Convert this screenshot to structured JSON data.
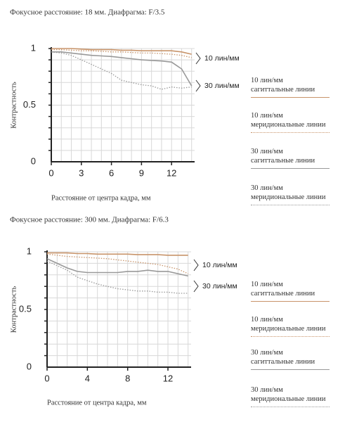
{
  "chart_data": [
    {
      "type": "line",
      "title": "Фокусное расстояние: 18 мм. Диафрагма: F/3.5",
      "xlabel": "Расстояние от центра кадра, мм",
      "ylabel": "Контрастность",
      "annotations": [
        "10 лин/мм",
        "30 лин/мм"
      ],
      "x": [
        0,
        1,
        2,
        3,
        4,
        5,
        6,
        7,
        8,
        9,
        10,
        11,
        12,
        13,
        14
      ],
      "xlim": [
        0,
        14.3
      ],
      "ylim": [
        0,
        1
      ],
      "xticks": [
        0,
        3,
        6,
        9,
        12
      ],
      "yticks": [
        0,
        {
          "value": 0.5,
          "label": "0.5"
        },
        1
      ],
      "minor_xticks": [
        1,
        2,
        3,
        4,
        5,
        6,
        7,
        8,
        9,
        10,
        11,
        12,
        13,
        14
      ],
      "minor_yticks": [
        0.1,
        0.2,
        0.3,
        0.4,
        0.5,
        0.6,
        0.7,
        0.8,
        0.9,
        1
      ],
      "grid": true,
      "series": [
        {
          "name": "10 лин/мм\nсагиттальные линии",
          "color": "#c8946a",
          "style": "solid",
          "values": [
            1,
            1,
            1,
            0.995,
            0.99,
            0.99,
            0.99,
            0.985,
            0.985,
            0.98,
            0.98,
            0.98,
            0.98,
            0.97,
            0.95
          ]
        },
        {
          "name": "10 лин/мм\nмеридиональные линии",
          "color": "#c8946a",
          "style": "dotted",
          "values": [
            0.99,
            0.99,
            0.985,
            0.98,
            0.98,
            0.975,
            0.97,
            0.97,
            0.965,
            0.96,
            0.96,
            0.955,
            0.95,
            0.94,
            0.92
          ]
        },
        {
          "name": "30 лин/мм\nсагиттальные линии",
          "color": "#999999",
          "style": "solid",
          "values": [
            0.97,
            0.97,
            0.96,
            0.95,
            0.94,
            0.935,
            0.93,
            0.92,
            0.91,
            0.9,
            0.895,
            0.89,
            0.88,
            0.82,
            0.67
          ]
        },
        {
          "name": "30 лин/мм\nмеридиональные линии",
          "color": "#999999",
          "style": "dotted",
          "values": [
            0.97,
            0.96,
            0.94,
            0.9,
            0.86,
            0.82,
            0.78,
            0.72,
            0.7,
            0.68,
            0.67,
            0.64,
            0.66,
            0.65,
            0.66
          ]
        }
      ]
    },
    {
      "type": "line",
      "title": "Фокусное расстояние: 300 мм. Диафрагма: F/6.3",
      "xlabel": "Расстояние от центра кадра, мм",
      "ylabel": "Контрастность",
      "annotations": [
        "10 лин/мм",
        "30 лин/мм"
      ],
      "x": [
        0,
        1,
        2,
        3,
        4,
        5,
        6,
        7,
        8,
        9,
        10,
        11,
        12,
        13,
        14
      ],
      "xlim": [
        0,
        14.3
      ],
      "ylim": [
        0,
        1
      ],
      "xticks": [
        0,
        4,
        8,
        12
      ],
      "yticks": [
        0,
        {
          "value": 0.5,
          "label": "0.5"
        },
        1
      ],
      "minor_xticks": [
        1,
        2,
        3,
        4,
        5,
        6,
        7,
        8,
        9,
        10,
        11,
        12,
        13,
        14
      ],
      "minor_yticks": [
        0.1,
        0.2,
        0.3,
        0.4,
        0.5,
        0.6,
        0.7,
        0.8,
        0.9,
        1
      ],
      "grid": true,
      "series": [
        {
          "name": "10 лин/мм\nсагиттальные линии",
          "color": "#c8946a",
          "style": "solid",
          "values": [
            0.99,
            0.99,
            0.99,
            0.985,
            0.985,
            0.98,
            0.98,
            0.98,
            0.98,
            0.975,
            0.975,
            0.975,
            0.97,
            0.97,
            0.97
          ]
        },
        {
          "name": "10 лин/мм\nмеридиональные линии",
          "color": "#c8946a",
          "style": "dotted",
          "values": [
            0.98,
            0.97,
            0.96,
            0.955,
            0.95,
            0.945,
            0.94,
            0.93,
            0.92,
            0.91,
            0.9,
            0.89,
            0.87,
            0.85,
            0.81
          ]
        },
        {
          "name": "30 лин/мм\nсагиттальные линии",
          "color": "#999999",
          "style": "solid",
          "values": [
            0.94,
            0.9,
            0.86,
            0.83,
            0.82,
            0.82,
            0.82,
            0.82,
            0.83,
            0.83,
            0.84,
            0.83,
            0.83,
            0.81,
            0.79
          ]
        },
        {
          "name": "30 лин/мм\nмеридиональные линии",
          "color": "#999999",
          "style": "dotted",
          "values": [
            0.92,
            0.88,
            0.84,
            0.78,
            0.75,
            0.72,
            0.7,
            0.68,
            0.67,
            0.66,
            0.66,
            0.65,
            0.65,
            0.64,
            0.64
          ]
        }
      ]
    }
  ]
}
